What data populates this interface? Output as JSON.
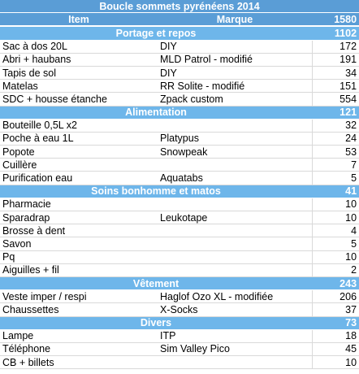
{
  "title": "Boucle sommets pyrénéens 2014",
  "header": {
    "item": "Item",
    "brand": "Marque",
    "total": "1580"
  },
  "sections": [
    {
      "name": "Portage et repos",
      "total": "1102",
      "rows": [
        {
          "item": "Sac à dos 20L",
          "brand": "DIY",
          "weight": "172"
        },
        {
          "item": "Abri + haubans",
          "brand": "MLD Patrol - modifié",
          "weight": "191"
        },
        {
          "item": "Tapis de sol",
          "brand": "DIY",
          "weight": "34"
        },
        {
          "item": "Matelas",
          "brand": "RR Solite - modifié",
          "weight": "151"
        },
        {
          "item": "SDC + housse étanche",
          "brand": "Zpack custom",
          "weight": "554"
        }
      ]
    },
    {
      "name": "Alimentation",
      "total": "121",
      "rows": [
        {
          "item": "Bouteille 0,5L x2",
          "brand": "",
          "weight": "32"
        },
        {
          "item": "Poche à eau 1L",
          "brand": "Platypus",
          "weight": "24"
        },
        {
          "item": "Popote",
          "brand": "Snowpeak",
          "weight": "53"
        },
        {
          "item": "Cuillère",
          "brand": "",
          "weight": "7"
        },
        {
          "item": "Purification eau",
          "brand": "Aquatabs",
          "weight": "5"
        }
      ]
    },
    {
      "name": "Soins bonhomme et matos",
      "total": "41",
      "rows": [
        {
          "item": "Pharmacie",
          "brand": "",
          "weight": "10"
        },
        {
          "item": "Sparadrap",
          "brand": "Leukotape",
          "weight": "10"
        },
        {
          "item": "Brosse à dent",
          "brand": "",
          "weight": "4"
        },
        {
          "item": "Savon",
          "brand": "",
          "weight": "5"
        },
        {
          "item": "Pq",
          "brand": "",
          "weight": "10"
        },
        {
          "item": "Aiguilles + fil",
          "brand": "",
          "weight": "2"
        }
      ]
    },
    {
      "name": "Vêtement",
      "total": "243",
      "rows": [
        {
          "item": "Veste imper / respi",
          "brand": "Haglof Ozo XL - modifiée",
          "weight": "206"
        },
        {
          "item": "Chaussettes",
          "brand": "X-Socks",
          "weight": "37"
        }
      ]
    },
    {
      "name": "Divers",
      "total": "73",
      "rows": [
        {
          "item": "Lampe",
          "brand": "ITP",
          "weight": "18"
        },
        {
          "item": "Téléphone",
          "brand": "Sim Valley Pico",
          "weight": "45"
        },
        {
          "item": "CB + billets",
          "brand": "",
          "weight": "10"
        }
      ]
    }
  ]
}
